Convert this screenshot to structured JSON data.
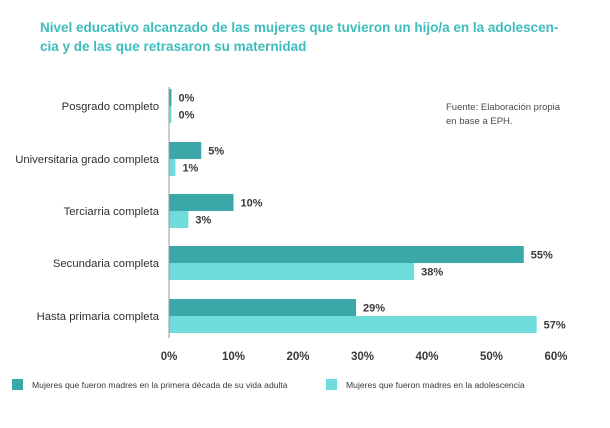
{
  "chart_data": {
    "type": "bar",
    "orientation": "horizontal",
    "title": "Nivel educativo alcanzado de las mujeres que tuvieron un hijo/a en la adolescen-\ncia y de las que retrasaron su maternidad",
    "source_note": "Fuente: Elaboración propia\nen base a EPH.",
    "categories": [
      "Posgrado completo",
      "Universitaria grado completa",
      "Terciarria completa",
      "Secundaria completa",
      "Hasta primaria completa"
    ],
    "series": [
      {
        "name": "Mujeres que fueron madres en la primera década de su vida adulta",
        "color": "#3aa8a8",
        "values": [
          0,
          5,
          10,
          55,
          29
        ],
        "labels": [
          "0%",
          "5%",
          "10%",
          "55%",
          "29%"
        ]
      },
      {
        "name": "Mujeres que fueron madres en la adolescencia",
        "color": "#6fdcdc",
        "values": [
          0,
          1,
          3,
          38,
          57
        ],
        "labels": [
          "0%",
          "1%",
          "3%",
          "38%",
          "57%"
        ]
      }
    ],
    "xlim": [
      0,
      60
    ],
    "xticks": [
      0,
      10,
      20,
      30,
      40,
      50,
      60
    ],
    "xtick_labels": [
      "0%",
      "10%",
      "20%",
      "30%",
      "40%",
      "50%",
      "60%"
    ],
    "xlabel": "",
    "ylabel": "",
    "grid": false,
    "legend_position": "bottom"
  }
}
